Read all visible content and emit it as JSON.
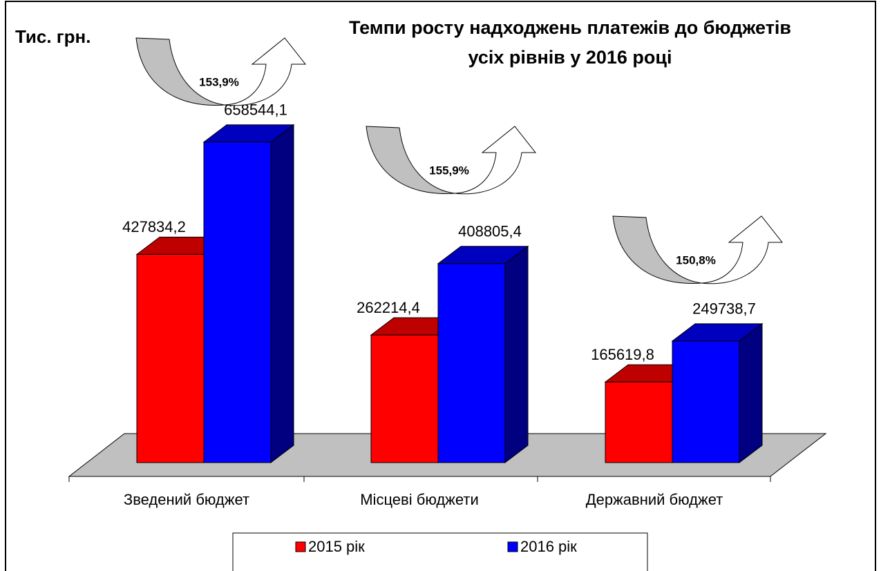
{
  "chart_data": {
    "type": "bar3d",
    "title": [
      "Темпи росту надходжень платежів до бюджетів",
      "усіх рівнів у 2016 році"
    ],
    "y_label": "Тис. грн.",
    "categories": [
      "Зведений бюджет",
      "Місцеві бюджети",
      "Державний бюджет"
    ],
    "series": [
      {
        "name": "2015 рік",
        "color": "#ff0000",
        "values": [
          427834.2,
          262214.4,
          165619.8
        ],
        "value_labels": [
          "427834,2",
          "262214,4",
          "165619,8"
        ]
      },
      {
        "name": "2016 рік",
        "color": "#0000ff",
        "values": [
          658544.1,
          408805.4,
          249738.7
        ],
        "value_labels": [
          "658544,1",
          "408805,4",
          "249738,7"
        ]
      }
    ],
    "annotations": [
      "153,9%",
      "155,9%",
      "150,8%"
    ]
  }
}
